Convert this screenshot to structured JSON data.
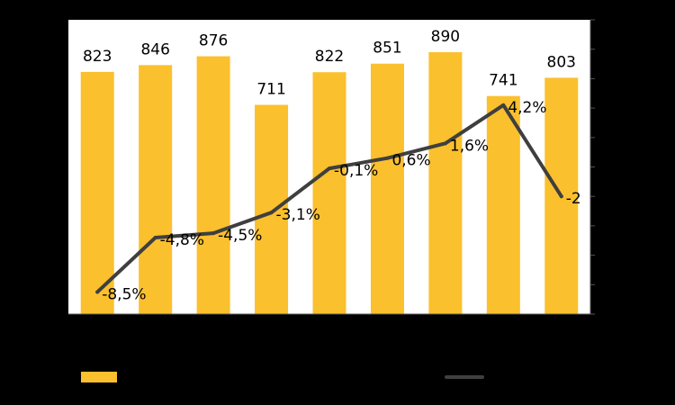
{
  "chart_data": {
    "type": "bar",
    "categories": [
      "",
      "",
      "",
      "",
      "",
      "",
      "",
      "",
      ""
    ],
    "series": [
      {
        "type": "bar",
        "values": [
          823,
          846,
          876,
          711,
          822,
          851,
          890,
          741,
          803
        ],
        "color": "#FBC02D"
      },
      {
        "type": "line",
        "values": [
          -8.5,
          -4.8,
          -4.5,
          -3.1,
          -0.1,
          0.6,
          1.6,
          4.2,
          -2.0
        ],
        "color": "#3F3F3F"
      }
    ],
    "bar_value_labels": [
      "823",
      "846",
      "876",
      "711",
      "822",
      "851",
      "890",
      "741",
      "803"
    ],
    "line_value_labels": [
      "-8,5%",
      "-4,8%",
      "-4,5%",
      "-3,1%",
      "-0,1%",
      "0,6%",
      "1,6%",
      "4,2%",
      "-2"
    ],
    "ylim_bars": [
      0,
      1000
    ],
    "ylim_line": [
      -10,
      10
    ],
    "plot_background": "#FFFFFF",
    "page_background": "#000000",
    "grid": false,
    "legend": {
      "placement": "bottom",
      "entries": [
        {
          "color": "#FBC02D"
        },
        {
          "color": "#3F3F3F"
        }
      ]
    }
  }
}
